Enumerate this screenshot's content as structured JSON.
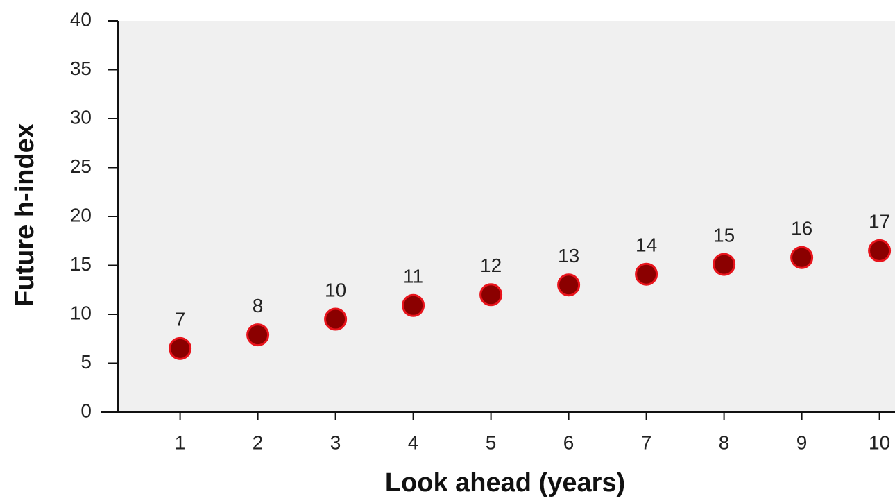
{
  "chart_data": {
    "type": "scatter",
    "x_label": "Look ahead (years)",
    "y_label": "Future h-index",
    "x": [
      1,
      2,
      3,
      4,
      5,
      6,
      7,
      8,
      9,
      10
    ],
    "values": [
      6.5,
      7.9,
      9.5,
      10.9,
      12,
      13,
      14.1,
      15.1,
      15.8,
      16.5
    ],
    "value_labels": [
      "7",
      "8",
      "10",
      "11",
      "12",
      "13",
      "14",
      "15",
      "16",
      "17"
    ],
    "color": "#8b0000",
    "edge_color": "#e8141c",
    "xlim": [
      0.2,
      10.2
    ],
    "xticks": [
      1,
      2,
      3,
      4,
      5,
      6,
      7,
      8,
      9,
      10
    ],
    "ylim": [
      0,
      40
    ],
    "yticks": [
      0,
      5,
      10,
      15,
      20,
      25,
      30,
      35,
      40
    ]
  }
}
